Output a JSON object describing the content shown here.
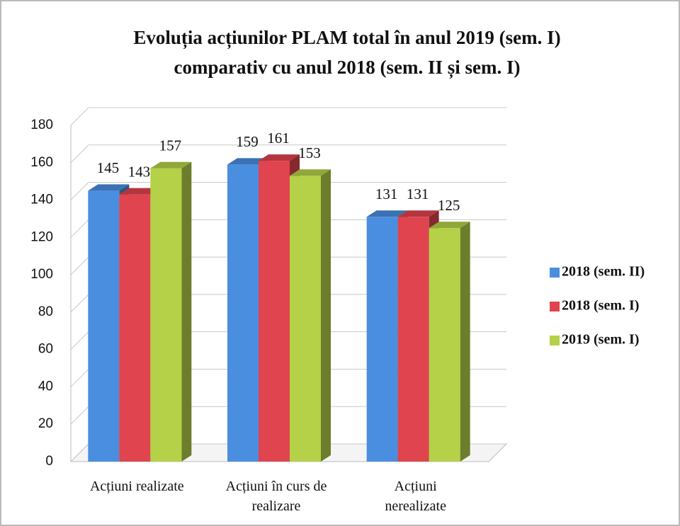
{
  "chart_data": {
    "type": "bar3d",
    "title": "Evoluția acțiunilor PLAM total în anul 2019 (sem. I) comparativ cu anul 2018 (sem. II și sem. I)",
    "categories": [
      "Acțiuni realizate",
      "Acțiuni în curs de realizare",
      "Acțiuni nerealizate"
    ],
    "series": [
      {
        "name": "2018 (sem. II)",
        "color": "#4a8ee0",
        "values": [
          145,
          159,
          131
        ]
      },
      {
        "name": "2018 (sem. I)",
        "color": "#e0444e",
        "values": [
          143,
          161,
          131
        ]
      },
      {
        "name": "2019 (sem. I)",
        "color": "#b4d147",
        "values": [
          157,
          153,
          125
        ]
      }
    ],
    "ylim": [
      0,
      180
    ],
    "yticks": [
      0,
      20,
      40,
      60,
      80,
      100,
      120,
      140,
      160,
      180
    ],
    "grid": true,
    "legend": "right"
  }
}
